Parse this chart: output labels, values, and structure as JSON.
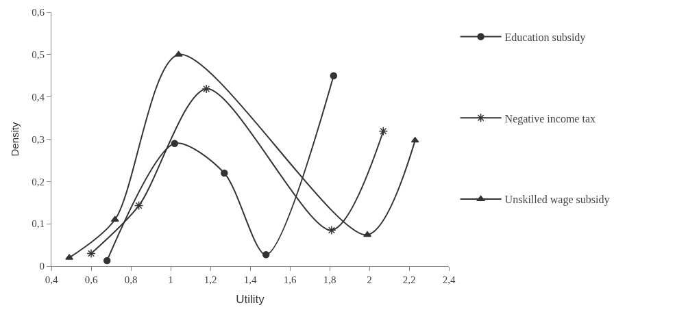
{
  "chart_data": {
    "type": "line",
    "xlabel": "Utility",
    "ylabel": "Density",
    "xlim": [
      0.4,
      2.4
    ],
    "xticks": [
      {
        "value": 0.4,
        "label": "0,4"
      },
      {
        "value": 0.6,
        "label": "0,6"
      },
      {
        "value": 0.8,
        "label": "0,8"
      },
      1,
      {
        "value": 1.2,
        "label": "1,2"
      },
      {
        "value": 1.4,
        "label": "1,4"
      },
      {
        "value": 1.6,
        "label": "1,6"
      },
      {
        "value": 1.8,
        "label": "1,8"
      },
      2,
      {
        "value": 2.2,
        "label": "2,2"
      },
      {
        "value": 2.4,
        "label": "2,4"
      }
    ],
    "ylim": [
      0,
      0.6
    ],
    "yticks": [
      0,
      {
        "value": 0.1,
        "label": "0,1"
      },
      {
        "value": 0.2,
        "label": "0,2"
      },
      {
        "value": 0.3,
        "label": "0,3"
      },
      {
        "value": 0.4,
        "label": "0,4"
      },
      {
        "value": 0.5,
        "label": "0,5"
      },
      {
        "value": 0.6,
        "label": "0,6"
      }
    ],
    "legend": "right",
    "line_style": "solid",
    "series": [
      {
        "name": "Education subsidy",
        "color": "#333333",
        "marker": "circle",
        "x": [
          0.68,
          1.02,
          1.27,
          1.48,
          1.82
        ],
        "values": [
          0.013,
          0.29,
          0.22,
          0.027,
          0.45
        ]
      },
      {
        "name": "Negative income tax",
        "color": "#333333",
        "marker": "cross",
        "x": [
          0.6,
          0.84,
          1.18,
          1.81,
          2.07
        ],
        "values": [
          0.03,
          0.143,
          0.419,
          0.085,
          0.319
        ]
      },
      {
        "name": "Unskilled wage subsidy",
        "color": "#333333",
        "marker": "triangle",
        "x": [
          0.49,
          0.72,
          1.04,
          1.99,
          2.23
        ],
        "values": [
          0.02,
          0.11,
          0.5,
          0.074,
          0.297
        ]
      }
    ]
  }
}
